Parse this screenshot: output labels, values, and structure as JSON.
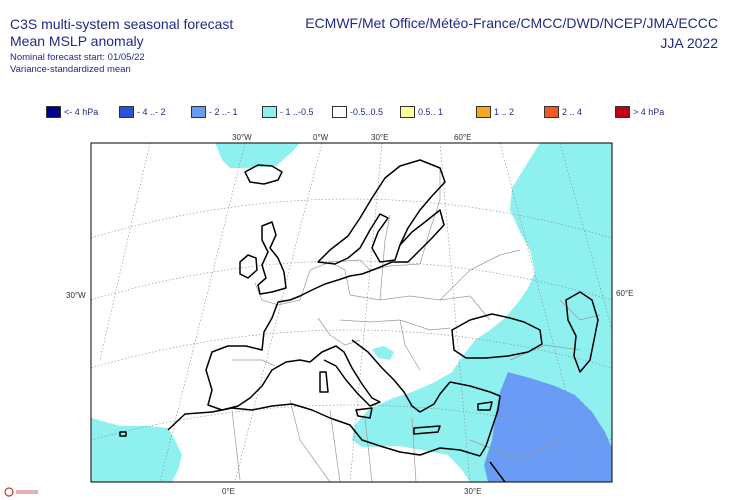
{
  "header": {
    "title_line1": "C3S multi-system seasonal forecast",
    "title_line2": "Mean MSLP anomaly",
    "start": "Nominal forecast start: 01/05/22",
    "method": "Variance-standardized mean",
    "centres": "ECMWF/Met Office/Météo-France/CMCC/DWD/NCEP/JMA/ECCC",
    "season": "JJA 2022"
  },
  "legend": [
    {
      "label": "<- 4 hPa",
      "color": "#00008b"
    },
    {
      "label": "- 4 ..- 2",
      "color": "#2a52d8"
    },
    {
      "label": "- 2 ..- 1",
      "color": "#6b9cf5"
    },
    {
      "label": "- 1 ..-0.5",
      "color": "#8ff0f0"
    },
    {
      "label": "-0.5..0.5",
      "color": "#ffffff"
    },
    {
      "label": "0.5.. 1",
      "color": "#ffff99"
    },
    {
      "label": "1 .. 2",
      "color": "#f5a820"
    },
    {
      "label": "2 .. 4",
      "color": "#f05a1e"
    },
    {
      "label": "> 4 hPa",
      "color": "#c00018"
    }
  ],
  "axes": {
    "top": [
      "30°W",
      "0°W",
      "30°E",
      "60°E"
    ],
    "left": "30°W",
    "right": "60°E",
    "bottom": [
      "0°E",
      "30°E"
    ]
  },
  "colors": {
    "light_blue": "#8ff0f0",
    "mid_blue": "#6b9cf5",
    "coast": "#000000",
    "border": "#9a9a9a",
    "grid": "#888888"
  },
  "logo": "logo-icon"
}
